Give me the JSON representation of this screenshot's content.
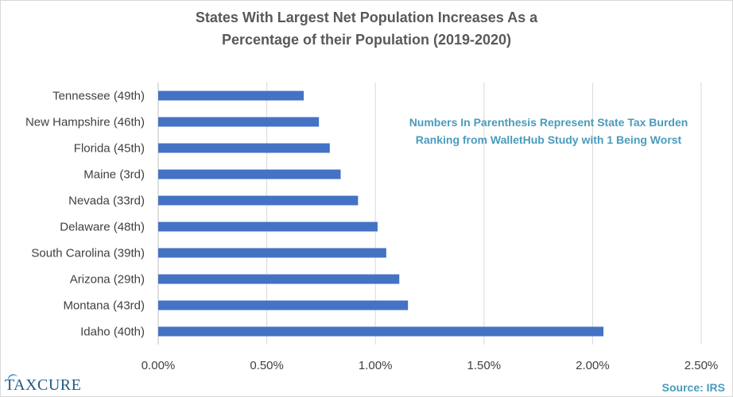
{
  "chart_data": {
    "type": "bar",
    "orientation": "horizontal",
    "title": "States With Largest Net Population Increases As a Percentage of their Population  (2019-2020)",
    "title_lines": [
      "States With Largest Net Population  Increases As a",
      "Percentage of their Population  (2019-2020)"
    ],
    "categories": [
      "Tennessee (49th)",
      "New Hampshire (46th)",
      "Florida (45th)",
      "Maine (3rd)",
      "Nevada (33rd)",
      "Delaware (48th)",
      "South Carolina (39th)",
      "Arizona (29th)",
      "Montana (43rd)",
      "Idaho (40th)"
    ],
    "values": [
      0.67,
      0.74,
      0.79,
      0.84,
      0.92,
      1.01,
      1.05,
      1.11,
      1.15,
      2.05
    ],
    "xlim": [
      0,
      2.5
    ],
    "x_ticks": [
      0,
      0.5,
      1.0,
      1.5,
      2.0,
      2.5
    ],
    "x_tick_labels": [
      "0.00%",
      "0.50%",
      "1.00%",
      "1.50%",
      "2.00%",
      "2.50%"
    ],
    "xlabel": "",
    "ylabel": "",
    "grid": "vertical",
    "bar_color": "#4472c4",
    "annotation_lines": [
      "Numbers In Parenthesis Represent State Tax Burden",
      "Ranking from WalletHub Study with 1 Being Worst"
    ]
  },
  "branding": {
    "logo_text": "TAXCURE",
    "source_text": "Source: IRS",
    "accent_color": "#4a9bbd",
    "logo_color": "#1f5a85"
  }
}
